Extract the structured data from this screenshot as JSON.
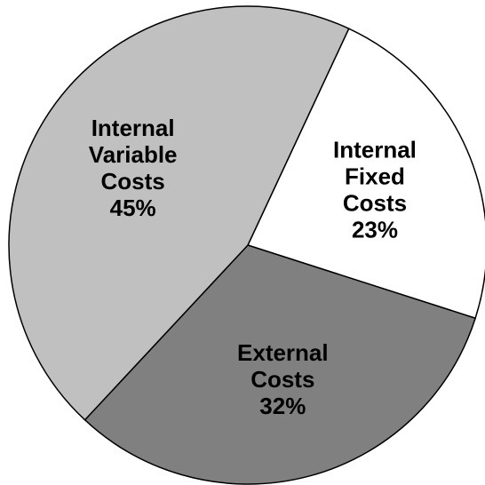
{
  "chart_data": {
    "type": "pie",
    "slices": [
      {
        "label": [
          "Internal",
          "Fixed",
          "Costs"
        ],
        "percent_text": "23%",
        "value": 23,
        "color": "#ffffff"
      },
      {
        "label": [
          "External",
          "Costs"
        ],
        "percent_text": "32%",
        "value": 32,
        "color": "#808080"
      },
      {
        "label": [
          "Internal",
          "Variable",
          "Costs"
        ],
        "percent_text": "45%",
        "value": 45,
        "color": "#c0c0c0"
      }
    ],
    "start_angle_deg": 25,
    "direction": "clockwise",
    "outline_color": "#000000"
  }
}
